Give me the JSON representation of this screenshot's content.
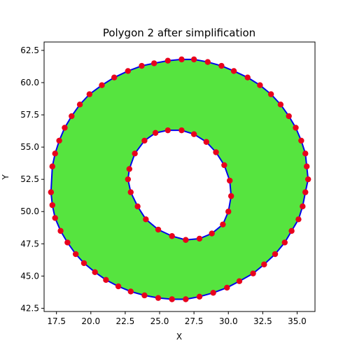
{
  "chart_data": {
    "type": "scatter",
    "title": "Polygon 2 after simplification",
    "xlabel": "X",
    "ylabel": "Y",
    "xlim": [
      16.6,
      36.3
    ],
    "ylim": [
      42.25,
      63.15
    ],
    "xticks": [
      "17.5",
      "20.0",
      "22.5",
      "25.0",
      "27.5",
      "30.0",
      "32.5",
      "35.0"
    ],
    "yticks": [
      "42.5",
      "45.0",
      "47.5",
      "50.0",
      "52.5",
      "55.0",
      "57.5",
      "60.0",
      "62.5"
    ],
    "grid": false,
    "fill_color": "#56e43f",
    "edge_color": "#0000ee",
    "vertex_color": "#e8001c",
    "outer_ring": {
      "x": [
        17.2,
        17.4,
        17.7,
        18.1,
        18.6,
        19.2,
        19.9,
        20.8,
        21.7,
        22.7,
        23.7,
        24.6,
        25.6,
        26.6,
        27.5,
        28.5,
        29.5,
        30.4,
        31.4,
        32.3,
        33.1,
        33.8,
        34.4,
        34.9,
        35.3,
        35.6,
        35.7,
        35.8,
        35.6,
        35.4,
        35.1,
        34.6,
        34.1,
        33.4,
        32.6,
        31.8,
        30.8,
        29.9,
        28.9,
        27.9,
        26.9,
        25.9,
        24.9,
        23.9,
        22.9,
        22.0,
        21.1,
        20.3,
        19.5,
        18.9,
        18.3,
        17.8,
        17.4,
        17.2,
        17.1
      ],
      "y": [
        53.5,
        54.5,
        55.5,
        56.5,
        57.4,
        58.3,
        59.1,
        59.8,
        60.4,
        60.9,
        61.3,
        61.5,
        61.7,
        61.8,
        61.8,
        61.6,
        61.3,
        60.9,
        60.4,
        59.8,
        59.1,
        58.3,
        57.4,
        56.5,
        55.5,
        54.5,
        53.5,
        52.5,
        51.5,
        50.4,
        49.4,
        48.5,
        47.6,
        46.7,
        45.9,
        45.2,
        44.6,
        44.1,
        43.7,
        43.4,
        43.2,
        43.2,
        43.3,
        43.5,
        43.8,
        44.2,
        44.7,
        45.3,
        46.0,
        46.7,
        47.6,
        48.5,
        49.5,
        50.5,
        51.5
      ]
    },
    "inner_ring": {
      "x": [
        22.8,
        23.2,
        23.9,
        24.7,
        25.6,
        26.6,
        27.5,
        28.4,
        29.1,
        29.7,
        30.1,
        30.2,
        30.0,
        29.6,
        28.8,
        27.9,
        26.9,
        25.9,
        24.9,
        24.0,
        23.4,
        22.9,
        22.7
      ],
      "y": [
        53.3,
        54.5,
        55.5,
        56.1,
        56.3,
        56.3,
        56.0,
        55.4,
        54.6,
        53.6,
        52.4,
        51.2,
        50.0,
        49.0,
        48.3,
        47.9,
        47.8,
        48.1,
        48.6,
        49.4,
        50.4,
        51.5,
        52.5
      ]
    }
  }
}
